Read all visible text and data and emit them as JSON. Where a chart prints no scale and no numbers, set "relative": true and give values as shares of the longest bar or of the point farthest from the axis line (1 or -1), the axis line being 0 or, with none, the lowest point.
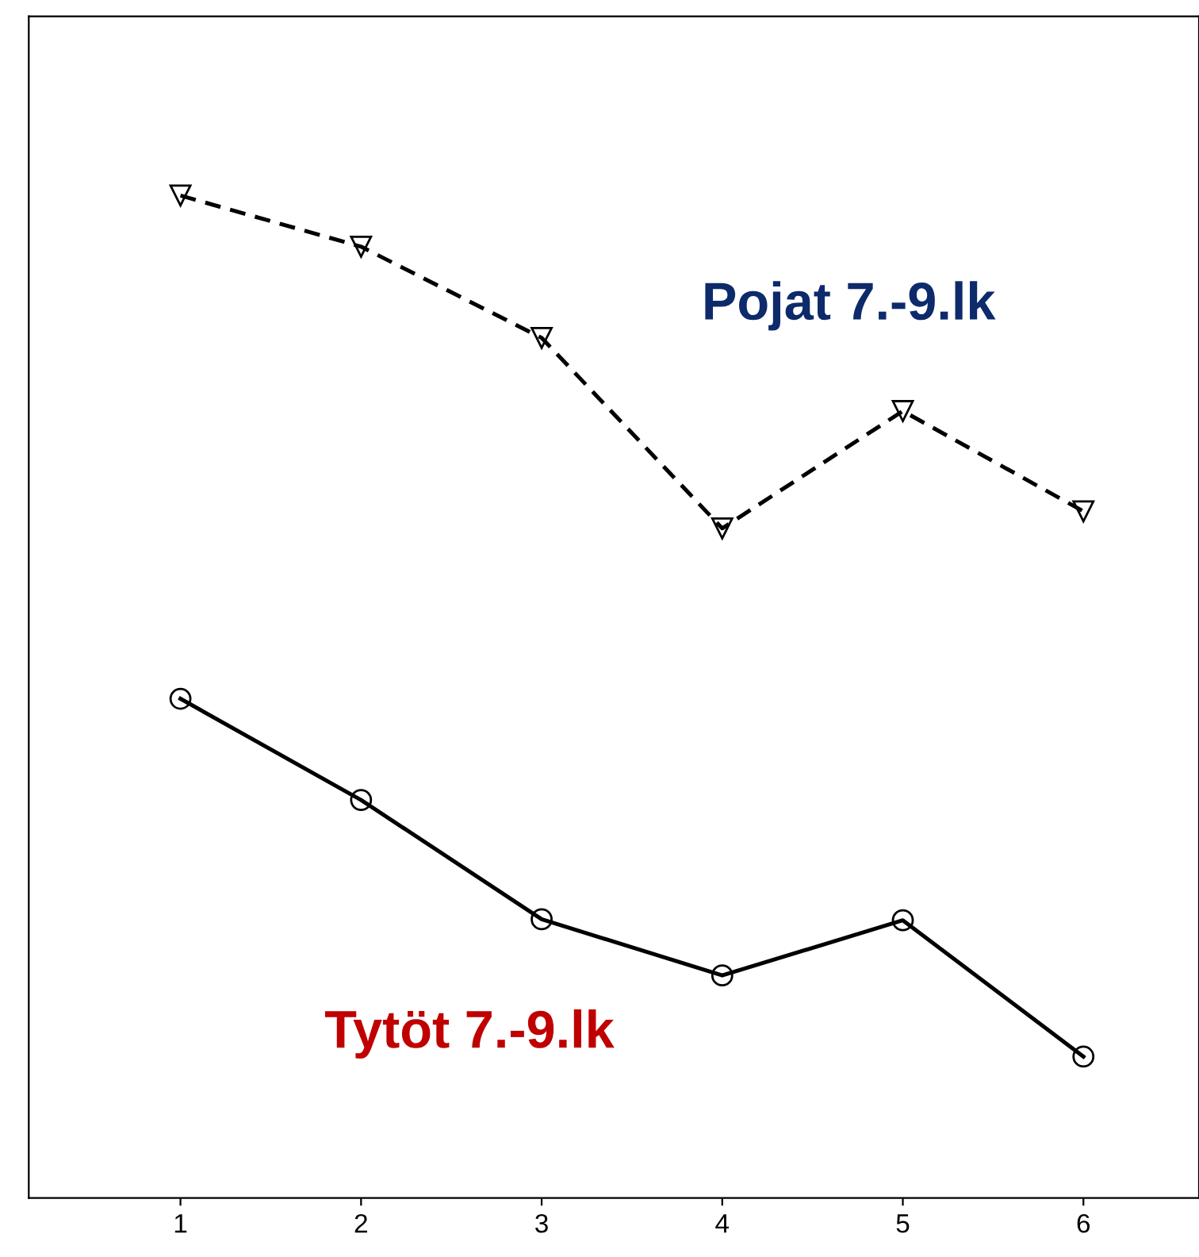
{
  "chart_data": {
    "type": "line",
    "relative": true,
    "x": [
      1,
      2,
      3,
      4,
      5,
      6
    ],
    "xlim": [
      0.16,
      6.64
    ],
    "xticks": [
      1,
      2,
      3,
      4,
      5,
      6
    ],
    "tick_labels": "x",
    "grid": false,
    "legend": false,
    "series": [
      {
        "name": "Pojat 7.-9.lk",
        "color": "#000000",
        "marker": "triangle",
        "line_style": "dashed",
        "values": [
          1,
          0.949,
          0.858,
          0.668,
          0.785,
          0.685
        ]
      },
      {
        "name": "Tytöt 7.-9.lk",
        "color": "#000000",
        "marker": "circle",
        "line_style": "solid",
        "values": [
          0.498,
          0.397,
          0.278,
          0.222,
          0.277,
          0.141
        ]
      }
    ]
  }
}
